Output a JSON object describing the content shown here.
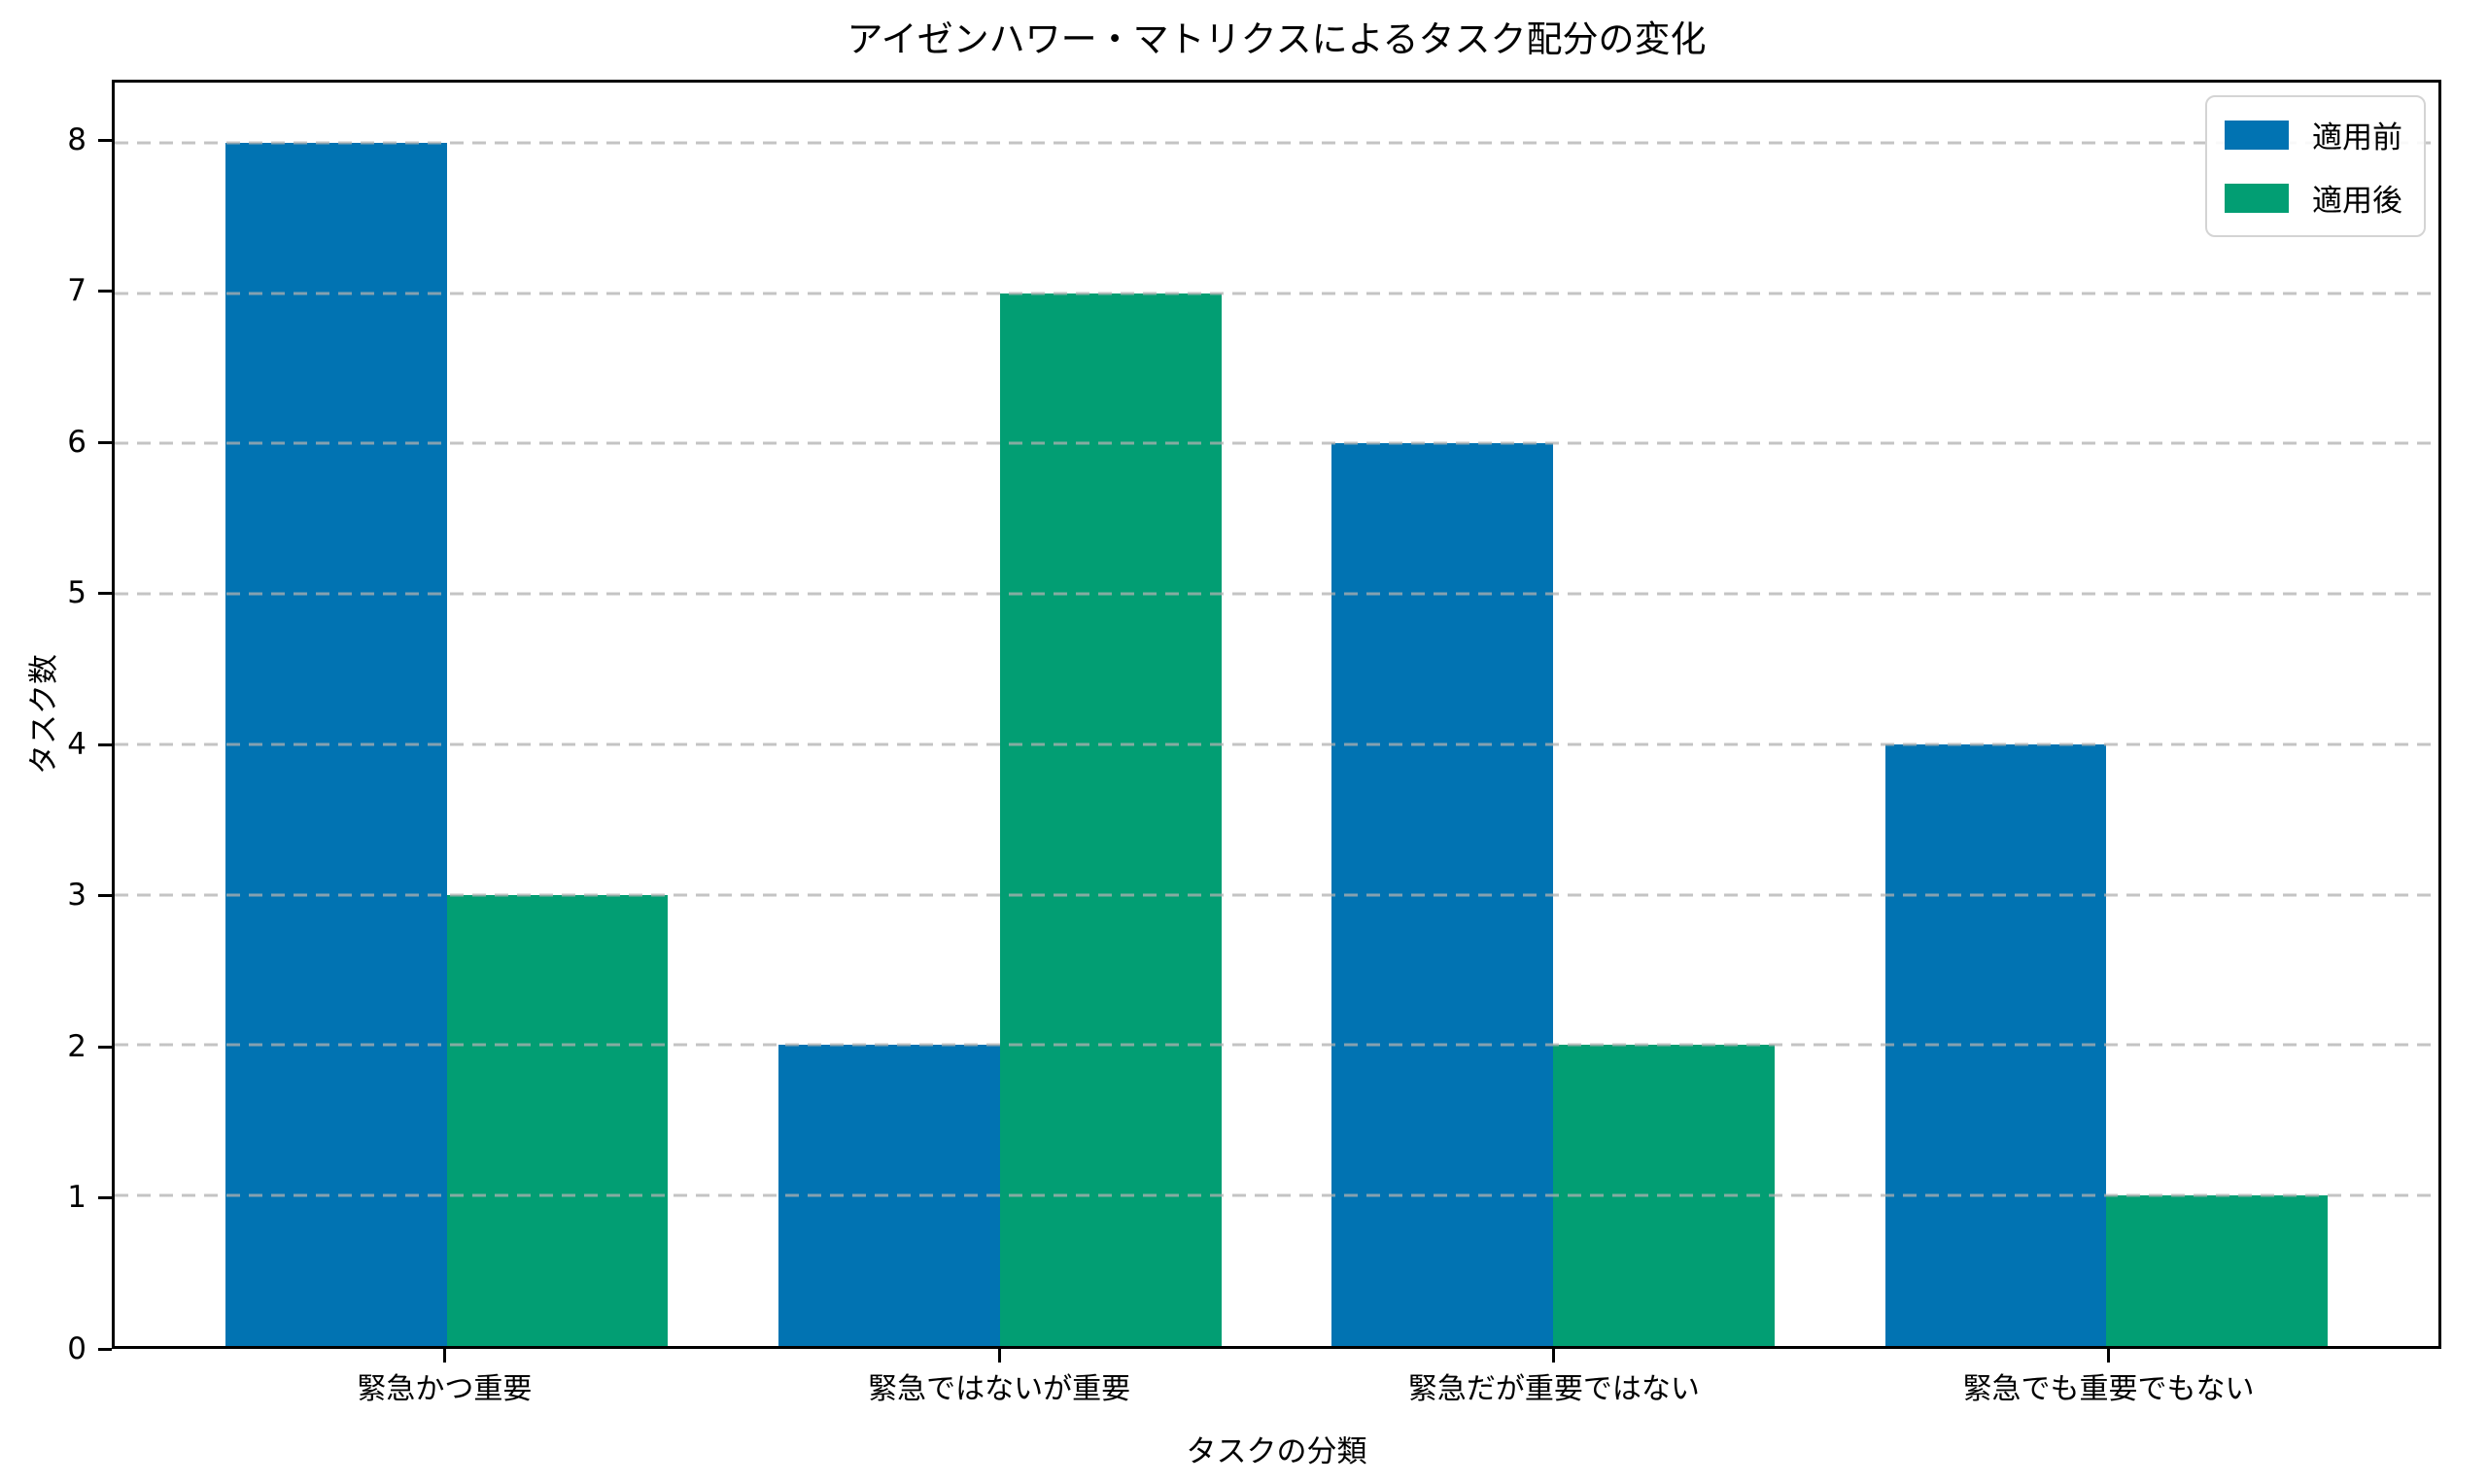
{
  "chart_data": {
    "type": "bar",
    "title": "アイゼンハワー・マトリクスによるタスク配分の変化",
    "xlabel": "タスクの分類",
    "ylabel": "タスク数",
    "categories": [
      "緊急かつ重要",
      "緊急ではないが重要",
      "緊急だが重要ではない",
      "緊急でも重要でもない"
    ],
    "series": [
      {
        "name": "適用前",
        "color": "#0173b2",
        "values": [
          8,
          2,
          6,
          4
        ]
      },
      {
        "name": "適用後",
        "color": "#029e73",
        "values": [
          3,
          7,
          2,
          1
        ]
      }
    ],
    "yticks": [
      0,
      1,
      2,
      3,
      4,
      5,
      6,
      7,
      8
    ],
    "ylim": [
      0,
      8.4
    ],
    "grid": "dashed-horizontal",
    "legend_position": "upper-right"
  }
}
